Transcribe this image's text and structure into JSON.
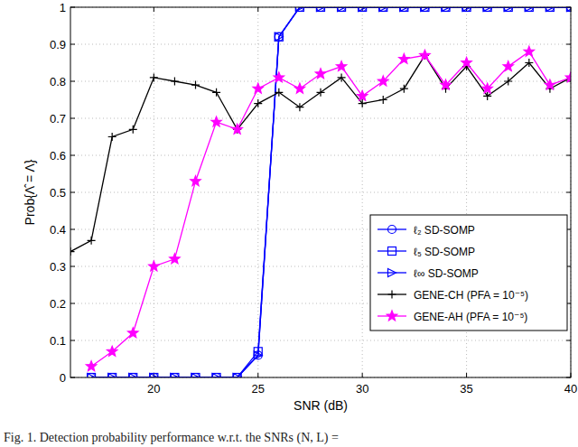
{
  "chart_data": {
    "type": "line",
    "x_label": "SNR (dB)",
    "y_label": "Prob{Λ̂ = Λ}",
    "caption": "Fig. 1.  Detection probability performance w.r.t. the SNRs (N, L) =",
    "x": [
      16,
      17,
      18,
      19,
      20,
      21,
      22,
      23,
      24,
      25,
      26,
      27,
      28,
      29,
      30,
      31,
      32,
      33,
      34,
      35,
      36,
      37,
      38,
      39,
      40
    ],
    "xlim": [
      16,
      40
    ],
    "xticks": [
      20,
      25,
      30,
      35,
      40
    ],
    "ylim": [
      0,
      1
    ],
    "yticks": [
      0,
      0.1,
      0.2,
      0.3,
      0.4,
      0.5,
      0.6,
      0.7,
      0.8,
      0.9,
      1
    ],
    "grid": true,
    "legend": "right",
    "series": [
      {
        "name": "ℓ₂ SD-SOMP",
        "color": "#0000ff",
        "marker": "circle",
        "line_style": "solid",
        "values": [
          null,
          0,
          0,
          0,
          0,
          0,
          0,
          0,
          0,
          0.06,
          0.92,
          1,
          1,
          1,
          1,
          1,
          1,
          1,
          1,
          1,
          1,
          1,
          1,
          1,
          1
        ]
      },
      {
        "name": "ℓ₅ SD-SOMP",
        "color": "#0000ff",
        "marker": "square",
        "line_style": "solid",
        "values": [
          null,
          0,
          0,
          0,
          0,
          0,
          0,
          0,
          0,
          0.07,
          0.92,
          1,
          1,
          1,
          1,
          1,
          1,
          1,
          1,
          1,
          1,
          1,
          1,
          1,
          1
        ]
      },
      {
        "name": "ℓ∞ SD-SOMP",
        "color": "#0000ff",
        "marker": "triangle-right",
        "line_style": "solid",
        "values": [
          null,
          0,
          0,
          0,
          0,
          0,
          0,
          0,
          0,
          0.06,
          0.92,
          1,
          1,
          1,
          1,
          1,
          1,
          1,
          1,
          1,
          1,
          1,
          1,
          1,
          1
        ]
      },
      {
        "name": "GENE-CH (PFA = 10⁻⁵)",
        "color": "#000000",
        "marker": "plus",
        "line_style": "solid",
        "values": [
          0.34,
          0.37,
          0.65,
          0.67,
          0.81,
          0.8,
          0.79,
          0.77,
          0.67,
          0.74,
          0.77,
          0.73,
          0.77,
          0.81,
          0.74,
          0.75,
          0.78,
          0.87,
          0.78,
          0.84,
          0.76,
          0.8,
          0.85,
          0.78,
          0.81
        ]
      },
      {
        "name": "GENE-AH (PFA = 10⁻⁵)",
        "color": "#ff00ff",
        "marker": "star",
        "line_style": "solid",
        "values": [
          null,
          0.03,
          0.07,
          0.12,
          0.3,
          0.32,
          0.53,
          0.69,
          0.67,
          0.78,
          0.81,
          0.78,
          0.82,
          0.84,
          0.76,
          0.8,
          0.86,
          0.87,
          0.79,
          0.85,
          0.78,
          0.84,
          0.88,
          0.79,
          0.81
        ]
      }
    ]
  }
}
